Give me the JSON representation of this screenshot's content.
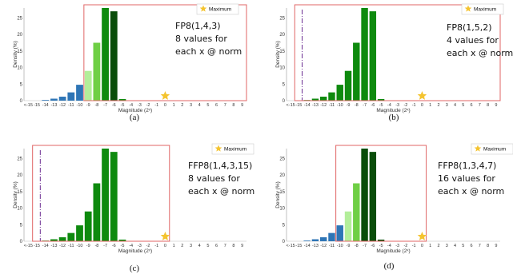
{
  "colors": {
    "blue": "#2e75b6",
    "lightgreen": "#b3ee9a",
    "midgreen": "#6fcf45",
    "green": "#0e8a0e",
    "darkgreen": "#0a4d0a",
    "box": "#e06666",
    "star": "#f4c430",
    "dash": "#6a2c91"
  },
  "chart_data": [
    {
      "type": "bar",
      "panel": "a",
      "caption": "(a)",
      "ylabel": "Density (%)",
      "xlabel": "Magnitude (2ˣ)",
      "xticks": [
        "<-15",
        "-15",
        "-14",
        "-13",
        "-12",
        "-11",
        "-10",
        "-9",
        "-8",
        "-7",
        "-6",
        "-5",
        "-4",
        "-3",
        "-2",
        "-1",
        "0",
        "1",
        "2",
        "3",
        "4",
        "5",
        "6",
        "7",
        "8",
        "9"
      ],
      "yticks": [
        0,
        5,
        10,
        15,
        20,
        25
      ],
      "ylim": [
        0,
        28
      ],
      "x": [
        -14,
        -13,
        -12,
        -11,
        -10,
        -9,
        -8,
        -7,
        -6,
        -5
      ],
      "values": [
        0.2,
        0.6,
        1.2,
        2.5,
        4.8,
        9,
        17.5,
        28,
        27,
        0.5
      ],
      "bar_colors": [
        "blue",
        "blue",
        "blue",
        "blue",
        "blue",
        "lightgreen",
        "midgreen",
        "green",
        "darkgreen",
        "green"
      ],
      "range_box": [
        -9.5,
        9.5
      ],
      "max_marker": 0,
      "dashdot": null,
      "legend": "Maximum",
      "annotation": [
        "FP8(1,4,3)",
        "8 values for",
        "each x @ norm"
      ]
    },
    {
      "type": "bar",
      "panel": "b",
      "caption": "(b)",
      "ylabel": "Density (%)",
      "xlabel": "Magnitude (2ˣ)",
      "xticks": [
        "<-15",
        "-15",
        "-14",
        "-13",
        "-12",
        "-11",
        "-10",
        "-9",
        "-8",
        "-7",
        "-6",
        "-5",
        "-4",
        "-3",
        "-2",
        "-1",
        "0",
        "1",
        "2",
        "3",
        "4",
        "5",
        "6",
        "7",
        "8",
        "9"
      ],
      "yticks": [
        0,
        5,
        10,
        15,
        20,
        25
      ],
      "ylim": [
        0,
        28
      ],
      "x": [
        -14,
        -13,
        -12,
        -11,
        -10,
        -9,
        -8,
        -7,
        -6,
        -5,
        -4
      ],
      "values": [
        0.2,
        0.6,
        1.2,
        2.5,
        4.8,
        9,
        17.5,
        28,
        27,
        0.5,
        0.1
      ],
      "bar_colors": [
        "green",
        "green",
        "green",
        "green",
        "green",
        "green",
        "green",
        "green",
        "green",
        "green",
        "green"
      ],
      "range_box": [
        -15.5,
        9.5
      ],
      "max_marker": 0,
      "dashdot": -14.6,
      "legend": "Maximum",
      "annotation": [
        "FP8(1,5,2)",
        "4 values for",
        "each x @ norm"
      ]
    },
    {
      "type": "bar",
      "panel": "c",
      "caption": "(c)",
      "ylabel": "Density (%)",
      "xlabel": "Magnitude (2ˣ)",
      "xticks": [
        "<-15",
        "-15",
        "-14",
        "-13",
        "-12",
        "-11",
        "-10",
        "-9",
        "-8",
        "-7",
        "-6",
        "-5",
        "-4",
        "-3",
        "-2",
        "-1",
        "0",
        "1",
        "2",
        "3",
        "4",
        "5",
        "6",
        "7",
        "8",
        "9"
      ],
      "yticks": [
        0,
        5,
        10,
        15,
        20,
        25
      ],
      "ylim": [
        0,
        28
      ],
      "x": [
        -14,
        -13,
        -12,
        -11,
        -10,
        -9,
        -8,
        -7,
        -6,
        -5,
        -4
      ],
      "values": [
        0.2,
        0.6,
        1.2,
        2.5,
        4.8,
        9,
        17.5,
        28,
        27,
        0.5,
        0.1
      ],
      "bar_colors": [
        "green",
        "green",
        "green",
        "green",
        "green",
        "green",
        "green",
        "green",
        "green",
        "green",
        "green"
      ],
      "range_box": [
        -15.5,
        0.5
      ],
      "max_marker": 0,
      "dashdot": -14.6,
      "legend": "Maximum",
      "annotation": [
        "FFP8(1,4,3,15)",
        "8 values for",
        "each x @ norm"
      ]
    },
    {
      "type": "bar",
      "panel": "d",
      "caption": "(d)",
      "ylabel": "Density (%)",
      "xlabel": "Magnitude (2ˣ)",
      "xticks": [
        "<-15",
        "-15",
        "-14",
        "-13",
        "-12",
        "-11",
        "-10",
        "-9",
        "-8",
        "-7",
        "-6",
        "-5",
        "-4",
        "-3",
        "-2",
        "-1",
        "0",
        "1",
        "2",
        "3",
        "4",
        "5",
        "6",
        "7",
        "8",
        "9"
      ],
      "yticks": [
        0,
        5,
        10,
        15,
        20,
        25
      ],
      "ylim": [
        0,
        28
      ],
      "x": [
        -14,
        -13,
        -12,
        -11,
        -10,
        -9,
        -8,
        -7,
        -6,
        -5
      ],
      "values": [
        0.2,
        0.6,
        1.2,
        2.5,
        4.8,
        9,
        17.5,
        28,
        27,
        0.5
      ],
      "bar_colors": [
        "blue",
        "blue",
        "blue",
        "blue",
        "blue",
        "lightgreen",
        "midgreen",
        "darkgreen",
        "darkgreen",
        "darkgreen"
      ],
      "range_box": [
        -10.5,
        0.5
      ],
      "max_marker": 0,
      "dashdot": null,
      "legend": "Maximum",
      "annotation": [
        "FFP8(1,3,4,7)",
        "16 values for",
        "each x @ norm"
      ]
    }
  ]
}
